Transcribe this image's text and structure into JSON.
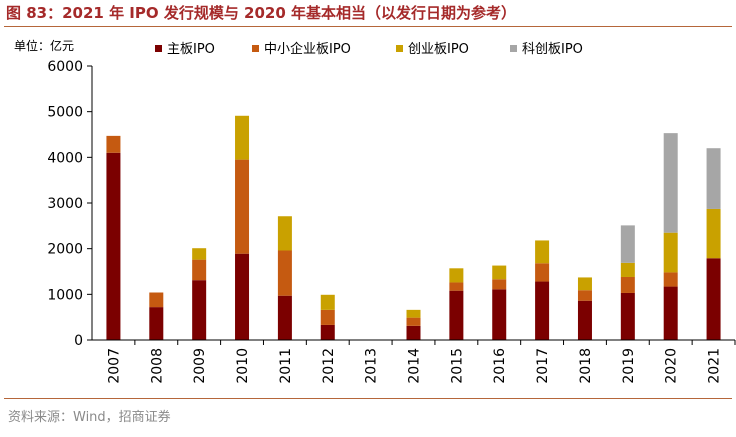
{
  "figure": {
    "title": "图 83：2021 年 IPO 发行规模与 2020 年基本相当（以发行日期为参考）",
    "source": "资料来源：Wind，招商证券"
  },
  "colors": {
    "main_board": "#7b0000",
    "sme_board": "#c55a11",
    "chinext": "#c9a100",
    "star_market": "#a6a6a6",
    "title": "#a52a2a",
    "rule": "#b5663a"
  },
  "chart_data": {
    "type": "bar",
    "stacked": true,
    "title": "",
    "ylabel": "单位：亿元",
    "xlabel": "",
    "ylim": [
      0,
      6000
    ],
    "yticks": [
      0,
      1000,
      2000,
      3000,
      4000,
      5000,
      6000
    ],
    "legend_position": "top",
    "categories": [
      "2007",
      "2008",
      "2009",
      "2010",
      "2011",
      "2012",
      "2013",
      "2014",
      "2015",
      "2016",
      "2017",
      "2018",
      "2019",
      "2020",
      "2021"
    ],
    "series": [
      {
        "name": "主板IPO",
        "color": "#7b0000",
        "values": [
          4100,
          720,
          1310,
          1890,
          970,
          330,
          0,
          310,
          1080,
          1110,
          1280,
          860,
          1030,
          1170,
          1790
        ]
      },
      {
        "name": "中小企业板IPO",
        "color": "#c55a11",
        "values": [
          370,
          320,
          450,
          2060,
          990,
          330,
          0,
          180,
          180,
          220,
          400,
          230,
          350,
          310,
          0
        ]
      },
      {
        "name": "创业板IPO",
        "color": "#c9a100",
        "values": [
          0,
          0,
          250,
          960,
          750,
          330,
          0,
          170,
          310,
          300,
          500,
          280,
          310,
          870,
          1080
        ]
      },
      {
        "name": "科创板IPO",
        "color": "#a6a6a6",
        "values": [
          0,
          0,
          0,
          0,
          0,
          0,
          0,
          0,
          0,
          0,
          0,
          0,
          820,
          2180,
          1330
        ]
      }
    ]
  }
}
